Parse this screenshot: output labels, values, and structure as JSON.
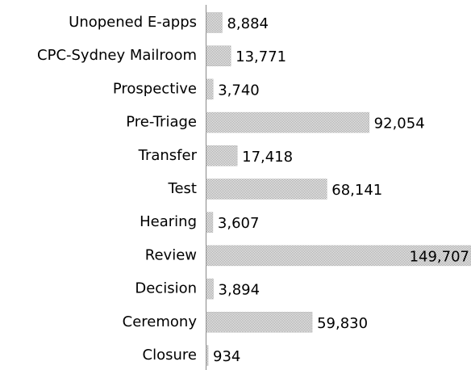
{
  "chart_data": {
    "type": "hbar",
    "categories": [
      "Unopened E-apps",
      "CPC-Sydney Mailroom",
      "Prospective",
      "Pre-Triage",
      "Transfer",
      "Test",
      "Hearing",
      "Review",
      "Decision",
      "Ceremony",
      "Closure"
    ],
    "values": [
      8884,
      13771,
      3740,
      92054,
      17418,
      68141,
      3607,
      149707,
      3894,
      59830,
      934
    ],
    "value_labels": [
      "8,884",
      "13,771",
      "3,740",
      "92,054",
      "17,418",
      "68,141",
      "3,607",
      "149,707",
      "3,894",
      "59,830",
      "934"
    ],
    "color": "#9a9a9a"
  }
}
